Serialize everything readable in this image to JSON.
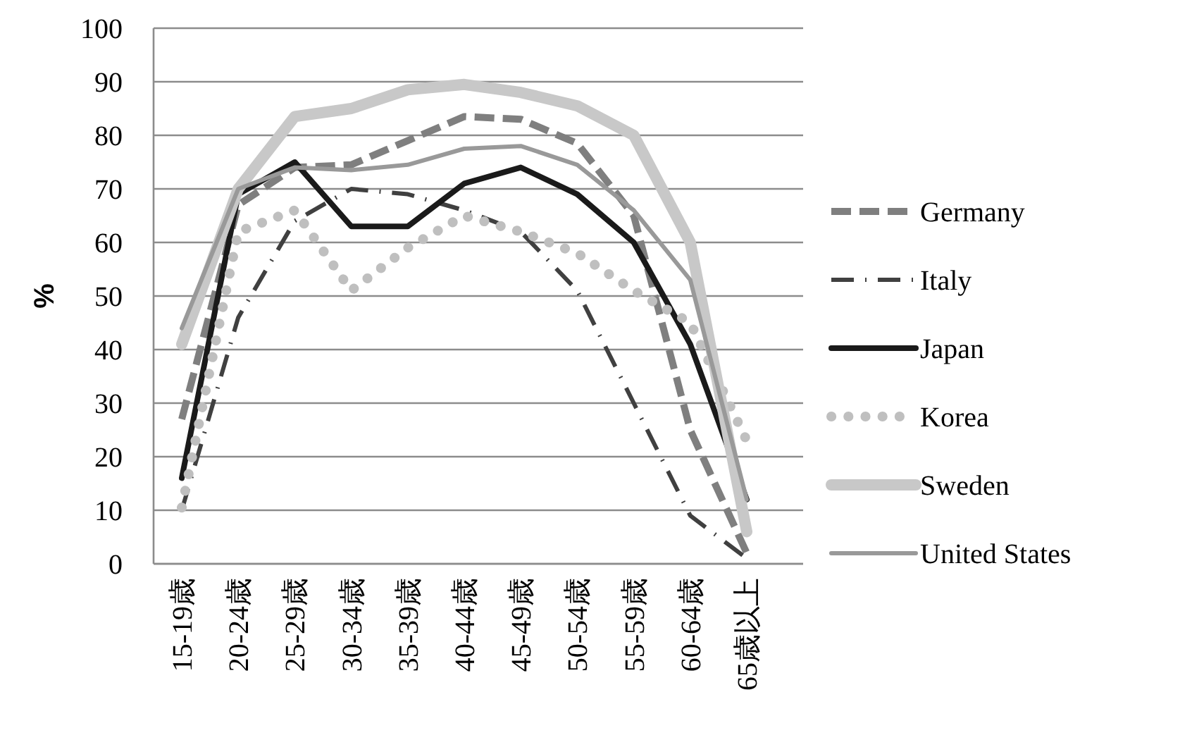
{
  "chart_data": {
    "type": "line",
    "ylabel": "%",
    "categories": [
      "15-19歳",
      "20-24歳",
      "25-29歳",
      "30-34歳",
      "35-39歳",
      "40-44歳",
      "45-49歳",
      "50-54歳",
      "55-59歳",
      "60-64歳",
      "65歳以上"
    ],
    "ylim": [
      0,
      100
    ],
    "yticks": [
      0,
      10,
      20,
      30,
      40,
      50,
      60,
      70,
      80,
      90,
      100
    ],
    "grid": "y",
    "legend": "right",
    "marker": "none",
    "series": [
      {
        "name": "Germany",
        "color": "#7f7f7f",
        "line_style": "dashed",
        "values": [
          27,
          67,
          74,
          74.5,
          79,
          83.5,
          83,
          78.5,
          65,
          25,
          2
        ]
      },
      {
        "name": "Italy",
        "color": "#404040",
        "line_style": "dashdot",
        "values": [
          10,
          46,
          64,
          70,
          69,
          66,
          62,
          51,
          30,
          9,
          1
        ]
      },
      {
        "name": "Japan",
        "color": "#1a1a1a",
        "line_style": "solid",
        "values": [
          16,
          69,
          75,
          63,
          63,
          71,
          74,
          69,
          60,
          41,
          12
        ]
      },
      {
        "name": "Korea",
        "color": "#bfbfbf",
        "line_style": "dotted",
        "values": [
          10.5,
          62,
          66,
          51,
          59,
          65,
          62,
          58,
          51,
          45,
          23
        ]
      },
      {
        "name": "Sweden",
        "color": "#c8c8c8",
        "line_style": "solid",
        "values": [
          41,
          70,
          83.5,
          85,
          88.5,
          89.5,
          88,
          85.5,
          80,
          60,
          6
        ]
      },
      {
        "name": "United States",
        "color": "#999999",
        "line_style": "solid",
        "values": [
          44,
          70,
          74,
          73.5,
          74.5,
          77.5,
          78,
          74.5,
          66,
          53,
          12
        ]
      }
    ]
  }
}
